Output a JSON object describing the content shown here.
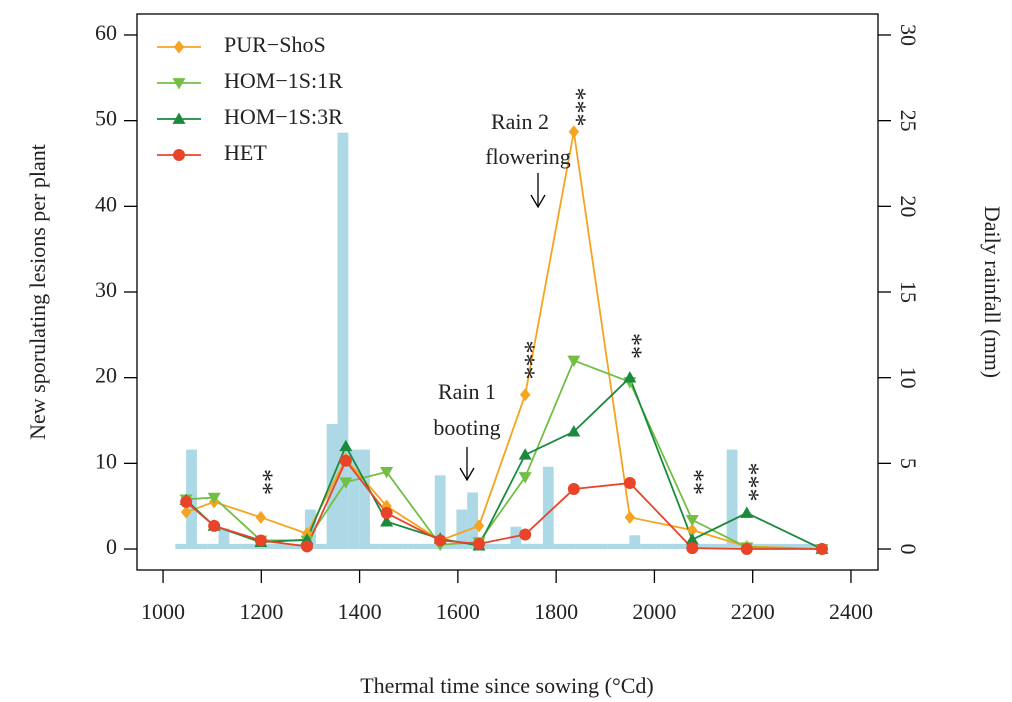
{
  "chart_data": {
    "type": "line",
    "xlabel": "Thermal time since sowing (°Cd)",
    "ylabel": "New sporulating lesions per plant",
    "y2label": "Daily rainfall (mm)",
    "xlim": [
      947,
      2455
    ],
    "ylim": [
      -2.45,
      62.45
    ],
    "y2lim": [
      -1.225,
      31.225
    ],
    "xticks": [
      1000,
      1200,
      1400,
      1600,
      1800,
      2000,
      2200,
      2400
    ],
    "yticks": [
      0,
      10,
      20,
      30,
      40,
      50,
      60
    ],
    "y2ticks": [
      0,
      5,
      10,
      15,
      20,
      25,
      30
    ],
    "legend": "top-left",
    "x": [
      1047,
      1104,
      1199,
      1293,
      1372,
      1455,
      1564,
      1643,
      1737,
      1836,
      1950,
      2077,
      2188,
      2341
    ],
    "series": [
      {
        "name": "PUR−ShoS",
        "color": "#f5a41f",
        "marker": "diamond",
        "values": [
          4.3,
          5.5,
          3.7,
          1.8,
          10.5,
          5.0,
          1.0,
          2.7,
          18,
          48.7,
          3.7,
          2.2,
          0.3,
          0
        ]
      },
      {
        "name": "HOM−1S:1R",
        "color": "#72bf44",
        "marker": "triangle-down",
        "values": [
          5.8,
          6.0,
          1.0,
          1.0,
          7.8,
          9.0,
          0.5,
          0.8,
          8.4,
          22,
          19.5,
          3.4,
          0.2,
          0
        ]
      },
      {
        "name": "HOM−1S:3R",
        "color": "#1a8a3e",
        "marker": "triangle-up",
        "values": [
          5.7,
          2.7,
          0.8,
          1.1,
          12,
          3.2,
          1.2,
          0.4,
          11,
          13.7,
          20,
          1.1,
          4.2,
          0
        ]
      },
      {
        "name": "HET",
        "color": "#e8442a",
        "marker": "circle",
        "values": [
          5.5,
          2.7,
          1.0,
          0.3,
          10.3,
          4.2,
          1.0,
          0.6,
          1.7,
          7.0,
          7.7,
          0.1,
          0,
          0
        ]
      }
    ],
    "rainfall": {
      "type": "bar",
      "axis": "y2",
      "color": "#add8e6",
      "x": [
        1036,
        1058,
        1080,
        1102,
        1124,
        1146,
        1168,
        1190,
        1212,
        1234,
        1256,
        1278,
        1300,
        1322,
        1344,
        1366,
        1388,
        1410,
        1432,
        1454,
        1476,
        1498,
        1520,
        1542,
        1564,
        1586,
        1608,
        1630,
        1652,
        1674,
        1696,
        1718,
        1740,
        1762,
        1784,
        1806,
        1828,
        1850,
        1872,
        1894,
        1916,
        1938,
        1960,
        1982,
        2004,
        2026,
        2048,
        2070,
        2092,
        2114,
        2136,
        2158,
        2180,
        2202,
        2224,
        2246,
        2268,
        2290,
        2312,
        2334
      ],
      "values": [
        0.3,
        5.8,
        0.3,
        0.3,
        1.2,
        0.3,
        0.3,
        0.3,
        0.3,
        0.3,
        0.3,
        0.3,
        2.3,
        0.3,
        7.3,
        24.3,
        5.8,
        5.8,
        0.3,
        0.3,
        0.3,
        0.3,
        0.3,
        0.3,
        4.3,
        0.3,
        2.3,
        3.3,
        0.3,
        0.3,
        0.3,
        1.3,
        0.3,
        0.3,
        4.8,
        0.3,
        0.3,
        0.3,
        0.3,
        0.3,
        0.3,
        0.3,
        0.8,
        0.3,
        0.3,
        0.3,
        0.3,
        0.3,
        0.3,
        0.3,
        0.3,
        5.8,
        0.3,
        0.3,
        0.3,
        0.3,
        0.3,
        0.3,
        0.3,
        0.3
      ]
    },
    "annotations": [
      "Rain 1",
      "booting",
      "Rain 2",
      "flowering",
      "**",
      "***",
      "***",
      "**",
      "**",
      "***"
    ]
  }
}
